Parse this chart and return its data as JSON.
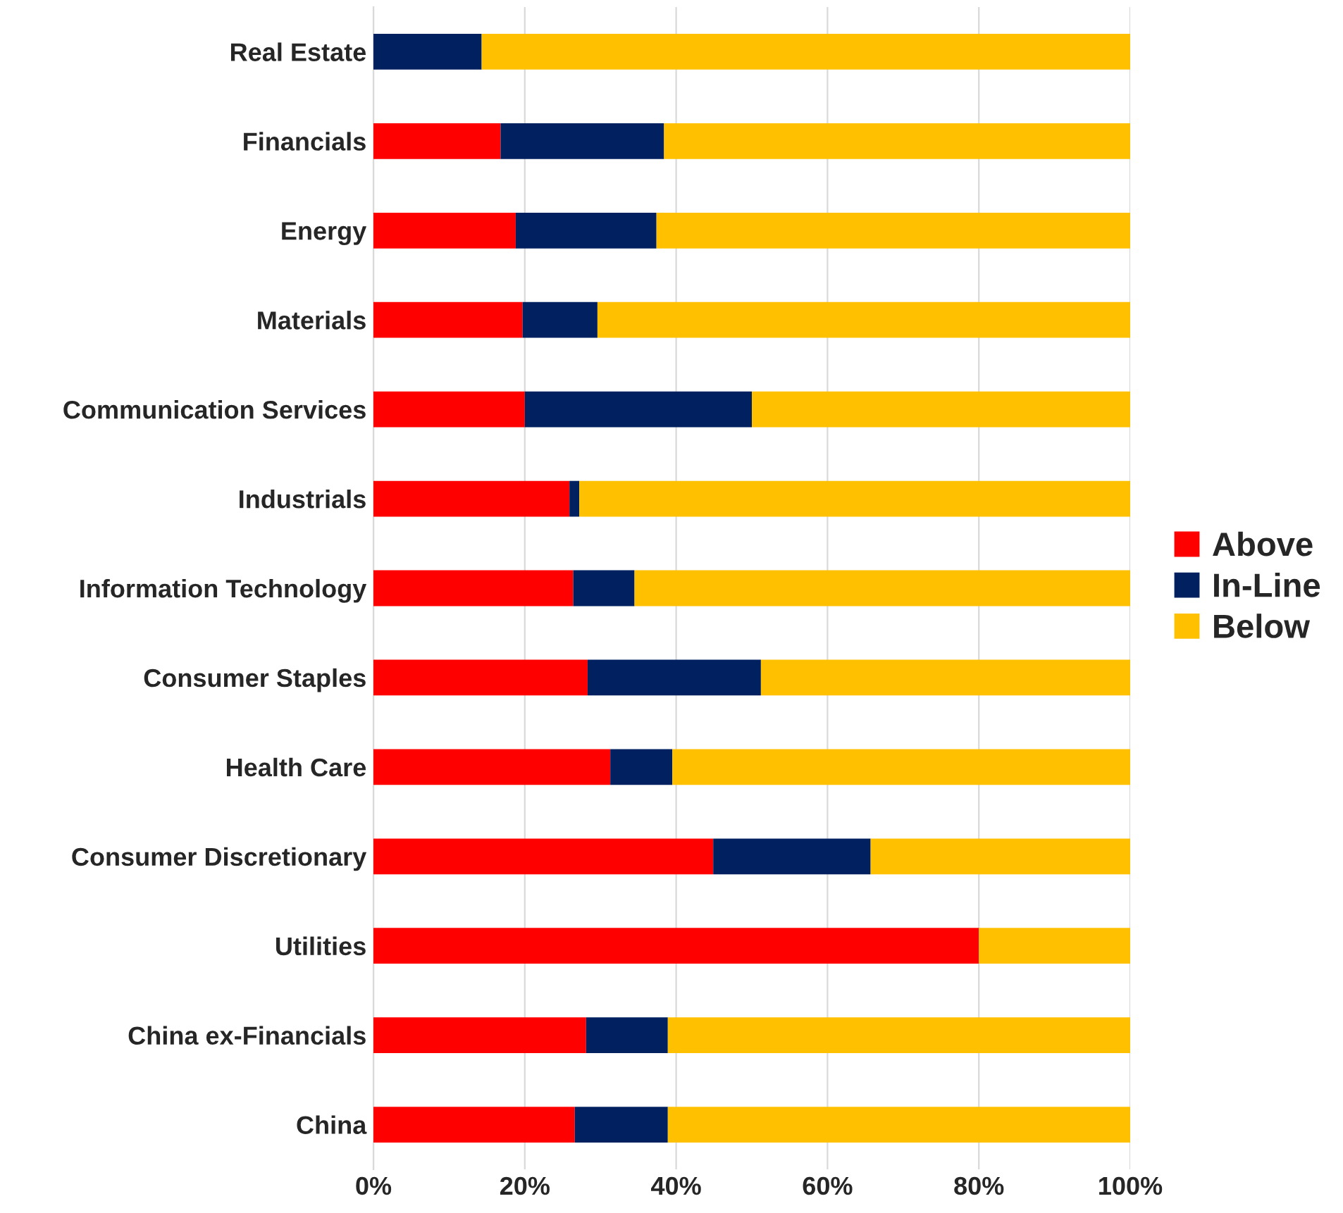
{
  "chart_data": {
    "type": "bar",
    "orientation": "horizontal",
    "stacked": true,
    "categories": [
      "Real Estate",
      "Financials",
      "Energy",
      "Materials",
      "Communication Services",
      "Industrials",
      "Information Technology",
      "Consumer Staples",
      "Health Care",
      "Consumer Discretionary",
      "Utilities",
      "China ex-Financials",
      "China"
    ],
    "series": [
      {
        "name": "Above",
        "color": "#ff0000",
        "values": [
          0,
          16.8,
          18.8,
          19.7,
          20,
          25.9,
          26.4,
          28.3,
          31.3,
          44.9,
          80,
          28.1,
          26.6
        ]
      },
      {
        "name": "In-Line",
        "color": "#002060",
        "values": [
          14.3,
          21.6,
          18.6,
          9.9,
          30,
          1.3,
          8.1,
          22.9,
          8.2,
          20.8,
          0,
          10.8,
          12.3
        ]
      },
      {
        "name": "Below",
        "color": "#ffc000",
        "values": [
          85.7,
          61.6,
          62.6,
          70.4,
          50,
          72.8,
          65.5,
          48.8,
          60.5,
          34.3,
          20,
          61.1,
          61.1
        ]
      }
    ],
    "xlim": [
      0,
      100
    ],
    "xticks": [
      {
        "value": 0,
        "label": "0%"
      },
      {
        "value": 20,
        "label": "20%"
      },
      {
        "value": 40,
        "label": "40%"
      },
      {
        "value": 60,
        "label": "60%"
      },
      {
        "value": 80,
        "label": "80%"
      },
      {
        "value": 100,
        "label": "100%"
      }
    ],
    "grid": "x",
    "legend": "right"
  }
}
